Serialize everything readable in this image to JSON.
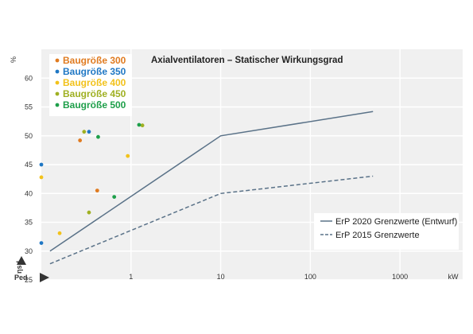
{
  "chart_data": {
    "type": "scatter",
    "title": "Axialventilatoren – Statischer Wirkungsgrad",
    "y_unit": "%",
    "x_unit": "kW",
    "ylabel": "ηsd",
    "xlabel": "Ped",
    "xscale": "log",
    "xlim": [
      0.1,
      5000
    ],
    "ylim": [
      25,
      65
    ],
    "yticks": [
      "60",
      "55",
      "50",
      "45",
      "40",
      "35",
      "30",
      "25"
    ],
    "xticks": [
      {
        "v": 1,
        "label": "1"
      },
      {
        "v": 10,
        "label": "10"
      },
      {
        "v": 100,
        "label": "100"
      },
      {
        "v": 1000,
        "label": "1000"
      }
    ],
    "scatter_series": [
      {
        "name": "Baugröße 300",
        "color": "#e07b20",
        "points": [
          [
            0.27,
            49.2
          ],
          [
            0.42,
            40.5
          ]
        ]
      },
      {
        "name": "Baugröße 350",
        "color": "#1f77c4",
        "points": [
          [
            0.1,
            45
          ],
          [
            0.1,
            31.4
          ],
          [
            0.34,
            50.7
          ]
        ]
      },
      {
        "name": "Baugröße 400",
        "color": "#f2c21b",
        "points": [
          [
            0.1,
            42.8
          ],
          [
            0.16,
            33.1
          ],
          [
            0.92,
            46.5
          ]
        ]
      },
      {
        "name": "Baugröße 450",
        "color": "#9fb022",
        "points": [
          [
            0.3,
            50.7
          ],
          [
            0.34,
            36.7
          ],
          [
            1.34,
            51.8
          ]
        ]
      },
      {
        "name": "Baugröße 500",
        "color": "#1e9f4a",
        "points": [
          [
            0.43,
            49.8
          ],
          [
            0.65,
            39.4
          ],
          [
            1.23,
            51.9
          ]
        ]
      }
    ],
    "line_series": [
      {
        "name": "ErP 2020 Grenzwerte (Entwurf)",
        "style": "solid",
        "color": "#5a7288",
        "points": [
          [
            0.125,
            30
          ],
          [
            10,
            50
          ],
          [
            500,
            54.2
          ]
        ]
      },
      {
        "name": "ErP 2015 Grenzwerte",
        "style": "dashed",
        "color": "#5a7288",
        "points": [
          [
            0.125,
            27.8
          ],
          [
            10,
            40
          ],
          [
            500,
            43
          ]
        ]
      }
    ],
    "grid": true,
    "legend_placement": [
      "top-left",
      "bottom-right"
    ]
  }
}
